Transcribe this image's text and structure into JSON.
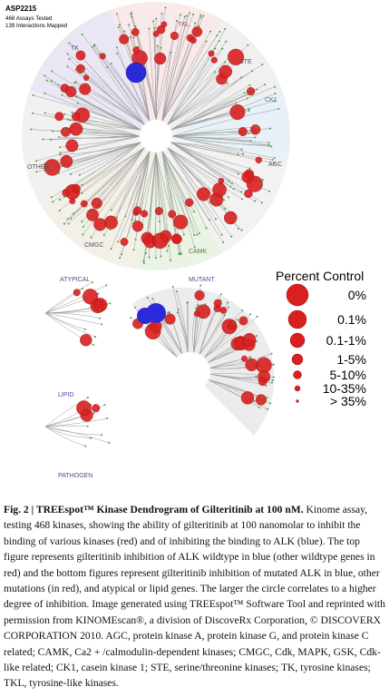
{
  "header": {
    "title": "ASP2215",
    "lines": [
      "468 Assays Tested",
      "139 Interactions Mapped"
    ]
  },
  "tree": {
    "groups": [
      "TK",
      "TKL",
      "STE",
      "CK1",
      "AGC",
      "CAMK",
      "CMGC",
      "OTHER"
    ]
  },
  "lower": {
    "labels": [
      "ATYPICAL",
      "MUTANT",
      "LIPID",
      "PATHOGEN"
    ]
  },
  "legend": {
    "title": "Percent Control",
    "entries": [
      "0%",
      "0.1%",
      "0.1-1%",
      "1-5%",
      "5-10%",
      "10-35%",
      "> 35%"
    ]
  },
  "caption": {
    "label": "Fig. 2 | TREEspot™ Kinase Dendrogram of Gilteritinib at 100 nM.",
    "text": "Kinome assay, testing 468 kinases, showing the ability of gilteritinib at 100 nanomolar to inhibit the binding of various kinases (red) and of inhibiting the binding to ALK (blue). The top figure represents gilteritinib inhibition of ALK wildtype in blue (other wildtype genes in red) and the bottom figures represent gilteritinib inhibition of mutated ALK in blue, other mutations (in red), and atypical or lipid genes. The larger the circle correlates to a higher degree of inhibition. Image generated using TREEspot™ Software Tool and reprinted with permission from KINOMEscan®, a division of DiscoveRx Corporation, © DISCOVERX CORPORATION 2010. AGC, protein kinase A, protein kinase G, and protein kinase C related; CAMK, Ca2 + /calmodulin-dependent kinases; CMGC, Cdk, MAPK, GSK, Cdk-like related; CK1, casein kinase 1; STE, serine/threonine kinases; TK, tyrosine kinases; TKL, tyrosine-like kinases."
  }
}
